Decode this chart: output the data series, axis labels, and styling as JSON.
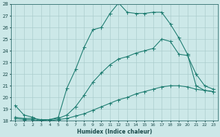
{
  "xlabel": "Humidex (Indice chaleur)",
  "xlim": [
    -0.5,
    23.5
  ],
  "ylim": [
    18,
    28
  ],
  "xticks": [
    0,
    1,
    2,
    3,
    4,
    5,
    6,
    7,
    8,
    9,
    10,
    11,
    12,
    13,
    14,
    15,
    16,
    17,
    18,
    19,
    20,
    21,
    22,
    23
  ],
  "yticks": [
    18,
    19,
    20,
    21,
    22,
    23,
    24,
    25,
    26,
    27,
    28
  ],
  "bg_color": "#cce8e8",
  "line_color": "#1a7a6e",
  "grid_color": "#aacccc",
  "curve1_x": [
    0,
    1,
    2,
    3,
    4,
    5,
    6,
    7,
    8,
    9,
    10,
    11,
    12,
    13,
    14,
    15,
    16,
    17,
    18,
    19,
    20,
    21,
    22,
    23
  ],
  "curve1_y": [
    19.3,
    18.5,
    18.3,
    18.0,
    18.1,
    18.3,
    20.8,
    22.4,
    24.3,
    25.8,
    26.0,
    27.2,
    28.1,
    27.3,
    27.2,
    27.2,
    27.3,
    27.3,
    26.3,
    25.1,
    23.7,
    21.0,
    20.6,
    20.5
  ],
  "curve2_x": [
    0,
    1,
    2,
    3,
    4,
    5,
    6,
    7,
    8,
    9,
    10,
    11,
    12,
    13,
    14,
    15,
    16,
    17,
    18,
    19,
    20,
    21,
    22,
    23
  ],
  "curve2_y": [
    18.3,
    18.2,
    18.2,
    18.1,
    18.1,
    18.2,
    18.5,
    19.2,
    20.2,
    21.3,
    22.1,
    22.8,
    23.3,
    23.5,
    23.8,
    24.0,
    24.2,
    25.0,
    24.8,
    23.7,
    23.6,
    22.0,
    21.0,
    20.7
  ],
  "curve3_x": [
    0,
    1,
    2,
    3,
    4,
    5,
    6,
    7,
    8,
    9,
    10,
    11,
    12,
    13,
    14,
    15,
    16,
    17,
    18,
    19,
    20,
    21,
    22,
    23
  ],
  "curve3_y": [
    18.2,
    18.1,
    18.1,
    18.0,
    18.0,
    18.1,
    18.2,
    18.4,
    18.6,
    18.9,
    19.2,
    19.5,
    19.8,
    20.0,
    20.3,
    20.5,
    20.7,
    20.9,
    21.0,
    21.0,
    20.9,
    20.7,
    20.6,
    20.5
  ]
}
